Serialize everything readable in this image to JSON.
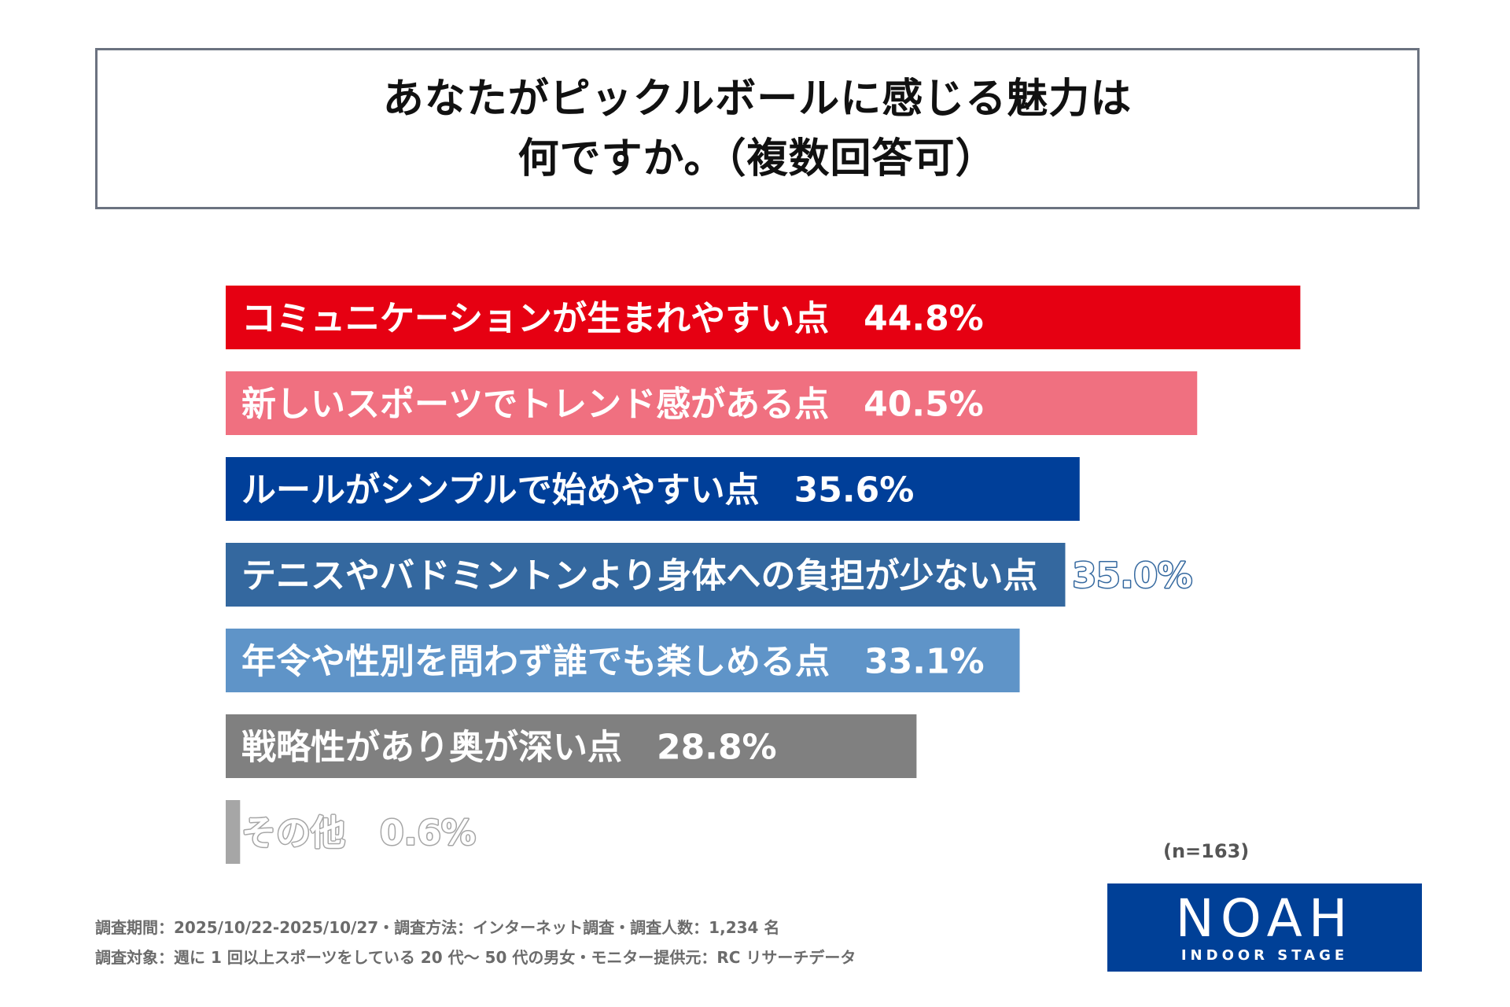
{
  "title": {
    "line1": "あなたがピックルボールに感じる魅力は",
    "line2": "何ですか。（複数回答可）"
  },
  "chart_data": {
    "type": "bar",
    "orientation": "horizontal",
    "categories": [
      "コミュニケーションが生まれやすい点",
      "新しいスポーツでトレンド感がある点",
      "ルールがシンプルで始めやすい点",
      "テニスやバドミントンより身体への負担が少ない点",
      "年令や性別を問わず誰でも楽しめる点",
      "戦略性があり奥が深い点",
      "その他"
    ],
    "values": [
      44.8,
      40.5,
      35.6,
      35.0,
      33.1,
      28.8,
      0.6
    ],
    "value_labels": [
      "44.8%",
      "40.5%",
      "35.6%",
      "35.0%",
      "33.1%",
      "28.8%",
      "0.6%"
    ],
    "colors": [
      "#e60012",
      "#f07080",
      "#003f99",
      "#34689f",
      "#5f94c8",
      "#808080",
      "#a6a6a6"
    ],
    "xlim": [
      0,
      50
    ],
    "unit": "%"
  },
  "sample_note": "(n=163)",
  "footnotes": {
    "line1": "調査期間：2025/10/22-2025/10/27・調査方法：インターネット調査・調査人数：1,234 名",
    "line2": "調査対象：週に 1 回以上スポーツをしている 20 代〜 50 代の男女・モニター提供元：RC リサーチデータ"
  },
  "logo": {
    "name": "NOAH",
    "subtitle": "INDOOR STAGE",
    "background": "#004097"
  }
}
